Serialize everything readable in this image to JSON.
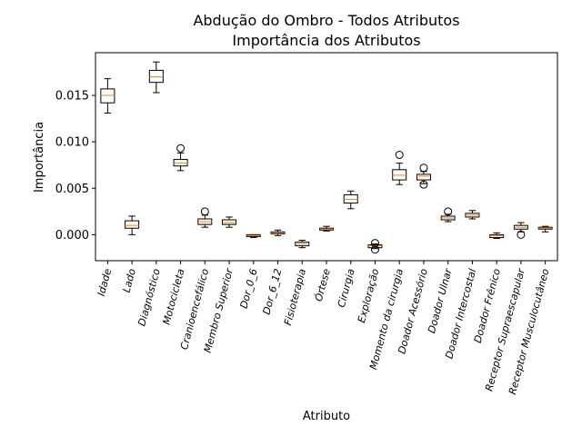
{
  "chart_data": {
    "type": "boxplot",
    "title": "Abdução do Ombro - Todos Atributos",
    "subtitle": "Importância dos Atributos",
    "xlabel": "Atributo",
    "ylabel": "Importância",
    "ylim": [
      -0.0028,
      0.0196
    ],
    "yticks": [
      0.0,
      0.005,
      0.01,
      0.015
    ],
    "ytick_labels": [
      "0.000",
      "0.005",
      "0.010",
      "0.015"
    ],
    "grid": false,
    "colors": {
      "box": "#000000",
      "median": "#ff7f0e",
      "flier": "#000000"
    },
    "categories": [
      "Idade",
      "Lado",
      "Diagnóstico",
      "Motocicleta",
      "Cranioencefálico",
      "Membro Superior",
      "Dor_0_6",
      "Dor_6_12",
      "Fisioterapia",
      "Órtese",
      "Cirurgia",
      "Exploração",
      "Momento da cirurgia",
      "Doador Acessório",
      "Doador Ulnar",
      "Doador Intercostal",
      "Doador Frênico",
      "Receptor Supraescapular",
      "Receptor Musculocutâneo"
    ],
    "boxes": [
      {
        "whislo": 0.0131,
        "q1": 0.0142,
        "med": 0.015,
        "q3": 0.0157,
        "whishi": 0.0168,
        "fliers": []
      },
      {
        "whislo": 0.0,
        "q1": 0.0007,
        "med": 0.001,
        "q3": 0.0015,
        "whishi": 0.002,
        "fliers": []
      },
      {
        "whislo": 0.0153,
        "q1": 0.0164,
        "med": 0.017,
        "q3": 0.0177,
        "whishi": 0.0186,
        "fliers": []
      },
      {
        "whislo": 0.0069,
        "q1": 0.0074,
        "med": 0.0077,
        "q3": 0.0081,
        "whishi": 0.0088,
        "fliers": [
          0.0093
        ]
      },
      {
        "whislo": 0.0008,
        "q1": 0.0011,
        "med": 0.0014,
        "q3": 0.0017,
        "whishi": 0.0021,
        "fliers": [
          0.0025
        ]
      },
      {
        "whislo": 0.0008,
        "q1": 0.0011,
        "med": 0.0013,
        "q3": 0.0016,
        "whishi": 0.0019,
        "fliers": []
      },
      {
        "whislo": -0.0003,
        "q1": -0.0002,
        "med": -0.0001,
        "q3": 0.0,
        "whishi": 0.0,
        "fliers": []
      },
      {
        "whislo": -0.0001,
        "q1": 0.0001,
        "med": 0.0002,
        "q3": 0.0003,
        "whishi": 0.0005,
        "fliers": []
      },
      {
        "whislo": -0.0014,
        "q1": -0.0012,
        "med": -0.001,
        "q3": -0.0008,
        "whishi": -0.0006,
        "fliers": []
      },
      {
        "whislo": 0.0004,
        "q1": 0.0005,
        "med": 0.0006,
        "q3": 0.0007,
        "whishi": 0.0009,
        "fliers": []
      },
      {
        "whislo": 0.0028,
        "q1": 0.0034,
        "med": 0.0038,
        "q3": 0.0043,
        "whishi": 0.0047,
        "fliers": []
      },
      {
        "whislo": -0.0015,
        "q1": -0.0014,
        "med": -0.0012,
        "q3": -0.0011,
        "whishi": -0.001,
        "fliers": [
          -0.0009,
          -0.0016
        ]
      },
      {
        "whislo": 0.0054,
        "q1": 0.0059,
        "med": 0.0064,
        "q3": 0.007,
        "whishi": 0.0077,
        "fliers": [
          0.0086
        ]
      },
      {
        "whislo": 0.0055,
        "q1": 0.0059,
        "med": 0.0063,
        "q3": 0.0065,
        "whishi": 0.0068,
        "fliers": [
          0.0072,
          0.0054
        ]
      },
      {
        "whislo": 0.0014,
        "q1": 0.0016,
        "med": 0.0018,
        "q3": 0.002,
        "whishi": 0.0022,
        "fliers": [
          0.0025
        ]
      },
      {
        "whislo": 0.0017,
        "q1": 0.0019,
        "med": 0.0021,
        "q3": 0.0023,
        "whishi": 0.0026,
        "fliers": []
      },
      {
        "whislo": -0.0004,
        "q1": -0.0003,
        "med": -0.0001,
        "q3": 0.0,
        "whishi": 0.0002,
        "fliers": []
      },
      {
        "whislo": 0.0003,
        "q1": 0.0006,
        "med": 0.0008,
        "q3": 0.001,
        "whishi": 0.0013,
        "fliers": [
          0.0
        ]
      },
      {
        "whislo": 0.0003,
        "q1": 0.0006,
        "med": 0.0007,
        "q3": 0.0008,
        "whishi": 0.0009,
        "fliers": []
      }
    ]
  }
}
